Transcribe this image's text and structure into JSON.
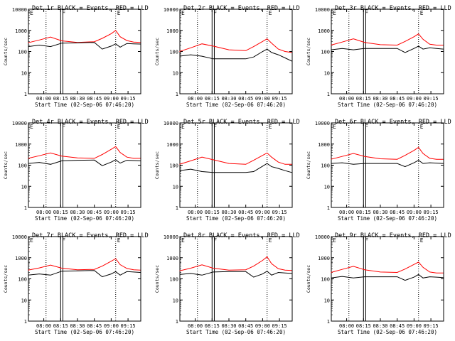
{
  "colors": {
    "events": "#000000",
    "lld": "#ff0000",
    "axes": "#000000",
    "background": "#ffffff"
  },
  "common": {
    "xlabel": "Start Time (02-Sep-06 07:46:20)",
    "ylabel": "Counts/sec",
    "x_ticks": [
      "08:00",
      "08:15",
      "08:30",
      "08:45",
      "09:00",
      "09:15"
    ],
    "y_ticks": [
      "1",
      "10",
      "100",
      "1000",
      "10000"
    ],
    "x_range": [
      "07:46:20",
      "09:26:20"
    ],
    "y_range": [
      1,
      10000
    ],
    "y_scale": "log",
    "dotted_markers": [
      "08:02",
      "09:04"
    ],
    "solid_markers": [
      "08:15",
      "08:17"
    ],
    "marker_letters": [
      "E",
      "F",
      "E"
    ]
  },
  "chart_data": [
    {
      "type": "line",
      "title": "Det 1r BLACK = Events, RED = LLD",
      "x": [
        "07:46",
        "07:56",
        "08:06",
        "08:16",
        "08:30",
        "08:45",
        "08:52",
        "09:00",
        "09:04",
        "09:08",
        "09:14",
        "09:20",
        "09:26"
      ],
      "series": [
        {
          "color": "red",
          "values": [
            260,
            350,
            480,
            320,
            270,
            290,
            420,
            700,
            1000,
            500,
            330,
            280,
            270
          ]
        },
        {
          "color": "black",
          "values": [
            170,
            200,
            170,
            250,
            260,
            270,
            130,
            180,
            230,
            160,
            240,
            230,
            225
          ]
        }
      ]
    },
    {
      "type": "line",
      "title": "Det 2r BLACK = Events, RED = LLD",
      "x": [
        "07:46",
        "07:56",
        "08:06",
        "08:16",
        "08:30",
        "08:45",
        "08:52",
        "09:00",
        "09:04",
        "09:08",
        "09:14",
        "09:20",
        "09:26"
      ],
      "series": [
        {
          "color": "red",
          "values": [
            100,
            150,
            230,
            180,
            120,
            110,
            170,
            300,
            400,
            250,
            130,
            100,
            90
          ]
        },
        {
          "color": "black",
          "values": [
            60,
            70,
            60,
            45,
            45,
            45,
            55,
            100,
            130,
            90,
            70,
            50,
            35
          ]
        }
      ]
    },
    {
      "type": "line",
      "title": "Det 3r BLACK = Events, RED = LLD",
      "x": [
        "07:46",
        "07:56",
        "08:06",
        "08:16",
        "08:30",
        "08:45",
        "08:52",
        "09:00",
        "09:04",
        "09:08",
        "09:14",
        "09:20",
        "09:26"
      ],
      "series": [
        {
          "color": "red",
          "values": [
            200,
            280,
            400,
            270,
            210,
            200,
            300,
            500,
            680,
            380,
            220,
            200,
            200
          ]
        },
        {
          "color": "black",
          "values": [
            120,
            140,
            120,
            140,
            140,
            140,
            90,
            140,
            180,
            130,
            150,
            140,
            130
          ]
        }
      ]
    },
    {
      "type": "line",
      "title": "Det 4r BLACK = Events, RED = LLD",
      "x": [
        "07:46",
        "07:56",
        "08:06",
        "08:16",
        "08:30",
        "08:45",
        "08:52",
        "09:00",
        "09:04",
        "09:08",
        "09:14",
        "09:20",
        "09:26"
      ],
      "series": [
        {
          "color": "red",
          "values": [
            210,
            280,
            380,
            270,
            220,
            210,
            320,
            560,
            760,
            400,
            240,
            210,
            210
          ]
        },
        {
          "color": "black",
          "values": [
            120,
            135,
            110,
            160,
            170,
            175,
            95,
            140,
            180,
            125,
            170,
            165,
            160
          ]
        }
      ]
    },
    {
      "type": "line",
      "title": "Det 5r BLACK = Events, RED = LLD",
      "x": [
        "07:46",
        "07:56",
        "08:06",
        "08:16",
        "08:30",
        "08:45",
        "08:52",
        "09:00",
        "09:04",
        "09:08",
        "09:14",
        "09:20",
        "09:26"
      ],
      "series": [
        {
          "color": "red",
          "values": [
            110,
            160,
            240,
            180,
            120,
            110,
            170,
            290,
            380,
            240,
            140,
            110,
            110
          ]
        },
        {
          "color": "black",
          "values": [
            55,
            65,
            50,
            45,
            45,
            45,
            50,
            90,
            120,
            85,
            70,
            55,
            45
          ]
        }
      ]
    },
    {
      "type": "line",
      "title": "Det 6r BLACK = Events, RED = LLD",
      "x": [
        "07:46",
        "07:56",
        "08:06",
        "08:16",
        "08:30",
        "08:45",
        "08:52",
        "09:00",
        "09:04",
        "09:08",
        "09:14",
        "09:20",
        "09:26"
      ],
      "series": [
        {
          "color": "red",
          "values": [
            190,
            260,
            360,
            260,
            200,
            190,
            290,
            500,
            700,
            360,
            210,
            190,
            190
          ]
        },
        {
          "color": "black",
          "values": [
            120,
            130,
            110,
            120,
            120,
            120,
            85,
            130,
            170,
            120,
            130,
            125,
            120
          ]
        }
      ]
    },
    {
      "type": "line",
      "title": "Det 7r BLACK = Events, RED = LLD",
      "x": [
        "07:46",
        "07:56",
        "08:06",
        "08:16",
        "08:30",
        "08:45",
        "08:52",
        "09:00",
        "09:04",
        "09:08",
        "09:14",
        "09:20",
        "09:26"
      ],
      "series": [
        {
          "color": "red",
          "values": [
            260,
            330,
            450,
            320,
            270,
            280,
            400,
            680,
            900,
            470,
            310,
            270,
            260
          ]
        },
        {
          "color": "black",
          "values": [
            150,
            170,
            150,
            230,
            240,
            250,
            125,
            170,
            220,
            150,
            220,
            210,
            200
          ]
        }
      ]
    },
    {
      "type": "line",
      "title": "Det 8r BLACK = Events, RED = LLD",
      "x": [
        "07:46",
        "07:56",
        "08:06",
        "08:16",
        "08:30",
        "08:45",
        "08:52",
        "09:00",
        "09:04",
        "09:08",
        "09:14",
        "09:20",
        "09:26"
      ],
      "series": [
        {
          "color": "red",
          "values": [
            240,
            320,
            460,
            320,
            260,
            270,
            400,
            750,
            1100,
            520,
            300,
            260,
            250
          ]
        },
        {
          "color": "black",
          "values": [
            160,
            180,
            150,
            210,
            220,
            220,
            120,
            170,
            230,
            150,
            200,
            190,
            180
          ]
        }
      ]
    },
    {
      "type": "line",
      "title": "Det 9r BLACK = Events, RED = LLD",
      "x": [
        "07:46",
        "07:56",
        "08:06",
        "08:16",
        "08:30",
        "08:45",
        "08:52",
        "09:00",
        "09:04",
        "09:08",
        "09:14",
        "09:20",
        "09:26"
      ],
      "series": [
        {
          "color": "red",
          "values": [
            200,
            280,
            390,
            270,
            210,
            200,
            290,
            480,
            620,
            350,
            210,
            190,
            190
          ]
        },
        {
          "color": "black",
          "values": [
            110,
            130,
            110,
            125,
            125,
            125,
            85,
            120,
            160,
            110,
            125,
            120,
            115
          ]
        }
      ]
    }
  ]
}
